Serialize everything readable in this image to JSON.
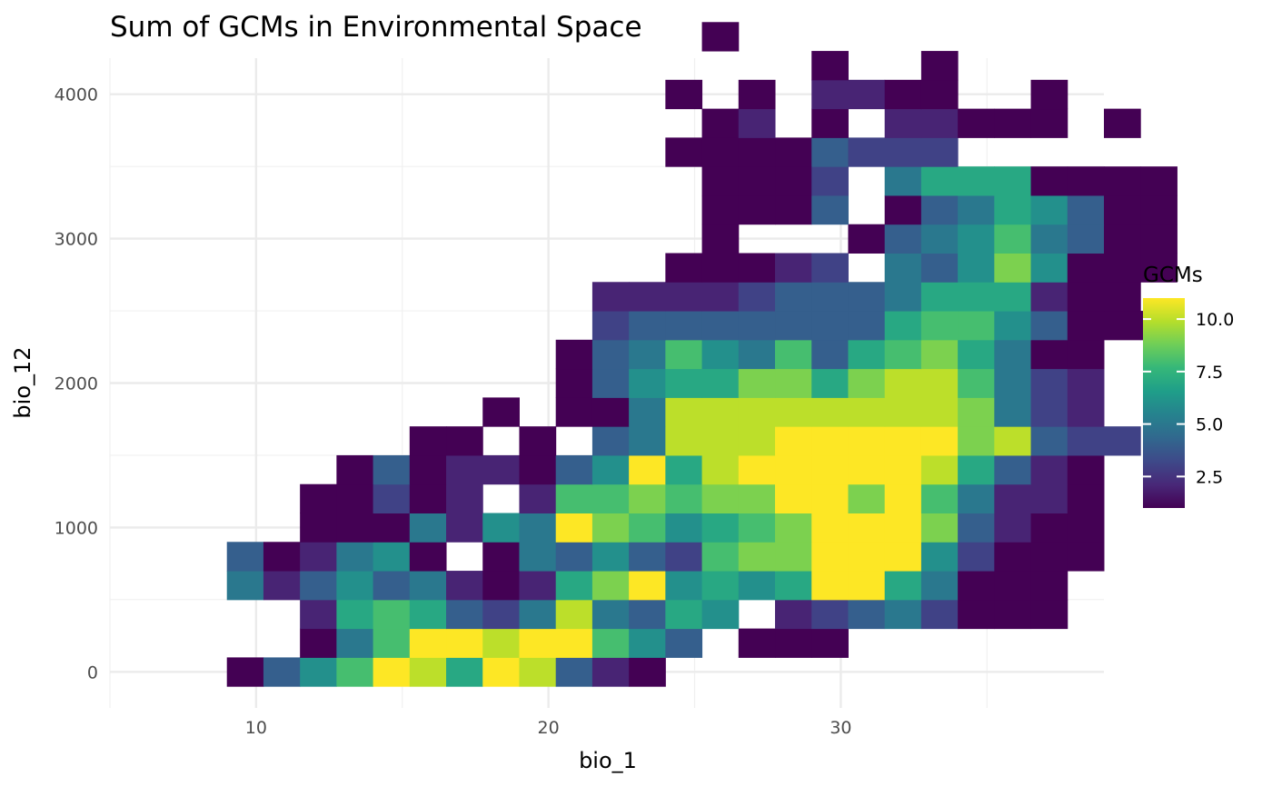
{
  "chart_data": {
    "type": "heatmap",
    "title": "Sum of GCMs in Environmental Space",
    "xlabel": "bio_1",
    "ylabel": "bio_12",
    "xlim": [
      5,
      39
    ],
    "ylim": [
      -250,
      4250
    ],
    "x_ticks": [
      10,
      20,
      30
    ],
    "y_ticks": [
      0,
      1000,
      2000,
      3000,
      4000
    ],
    "grid": true,
    "legend": {
      "title": "GCMs",
      "position": "right",
      "min": 1,
      "max": 11,
      "ticks": [
        2.5,
        5.0,
        7.5,
        10.0
      ],
      "tick_labels": [
        "2.5",
        "5.0",
        "7.5",
        "10.0"
      ]
    },
    "colorscale": [
      "#440154",
      "#482878",
      "#3e4989",
      "#31688e",
      "#26828e",
      "#1f9e89",
      "#35b779",
      "#6ece58",
      "#b5de2b",
      "#fde725"
    ],
    "bin_width_x": 1.25,
    "bin_height_y": 200,
    "x_bin_start": 6.5,
    "y_bin_start": -100,
    "grid_rows_bottom_to_top": [
      "..1,4,6,8,11,10,7,11,10,4,2,1.................",
      "....1,5,8,11,11,10,11,11,8,6,4.1,1,1...........",
      "....2,7,8,7,4,3,5,10,5,4,7,6.2,3,4,5,3,1,1,1,...",
      "..5,2,4,6,4,5,2,1,2,7,9,11,6,7,6,7,11,11,7,5,1,1,1,.",
      "..4,1,2,5,6,1.1,5,4,6,4,3,8,9,9,11,11,11,6,3,1,1,1,.",
      "....1,1,1,5,2,6,5,11,9,8,6,7,8,9,11,11,11,9,4,2,1,1,.",
      "....1,1,3,1,2.2,8,8,9,8,9,9,11,11,9,11,8,5,2,2,1,.",
      ".....1,4,1,2,2,1,4,6,11,7,10,11,11,11,11,11,10,7,4,2,1,",
      ".......1,1.1.4,5,10,10,10,11,11,11,11,11,9,10,4,3,3,",
      ".........1.1,1,5,10,10,10,10,10,10,10,10,9,5,3,2,",
      "...........1,4,6,7,7,9,9,7,9,10,10,8,5,3,2,",
      "...........1,4,5,8,6,5,8,4,7,8,9,7,5,1,1,.",
      "............3,4,4,4,4,4,4,4,7,8,8,6,4,1,1,1,",
      "............2,2,2,2,3,4,4,4,5,7,7,7,2,1,1,.",
      "..............1,1,1,2,3,.5,4,6,9,6,1,1,1,.",
      "...............1,...1,4,5,6,8,5,4,1,1,.",
      "...............1,1,1,4,.1,4,5,7,6,4,1,1,.",
      "...............1,1,1,3,.5,7,7,7,1,1,1,1,.",
      "..............1,1,1,1,4,3,3,3,.",
      "...............1,2,.1,.2,2,1,1,1,.1,",
      "..............1,.1,.2,2,1,1,..1,",
      "..................1,..1,........",
      "...............1................."
    ]
  }
}
